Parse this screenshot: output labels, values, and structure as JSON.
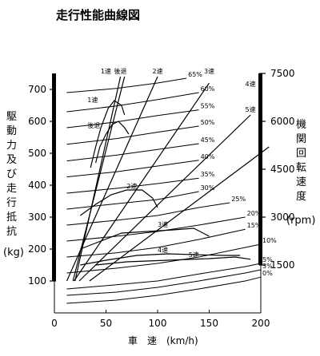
{
  "chart_data": {
    "type": "line",
    "title": "走行性能曲線図",
    "left_axis_label_chars": [
      "駆",
      "動",
      "力",
      "及",
      "び",
      "走",
      "行",
      "抵",
      "抗"
    ],
    "left_axis_unit": "(kg)",
    "right_axis_label_chars": [
      "機",
      "関",
      "回",
      "転",
      "速",
      "度"
    ],
    "right_axis_unit": "(rpm)",
    "xlabel": "車　速　(km/h)",
    "xlim": [
      0,
      200
    ],
    "ylim": [
      0,
      750
    ],
    "rpm_lim": [
      0,
      7500
    ],
    "x_ticks": [
      "0",
      "50",
      "100",
      "150",
      "200"
    ],
    "x_tick_values": [
      0,
      50,
      100,
      150,
      200
    ],
    "y_ticks": [
      "100",
      "200",
      "300",
      "400",
      "500",
      "600",
      "700"
    ],
    "y_tick_values": [
      100,
      200,
      300,
      400,
      500,
      600,
      700
    ],
    "rpm_ticks": [
      "1500",
      "3000",
      "4500",
      "6000",
      "7500"
    ],
    "rpm_tick_values": [
      1500,
      3000,
      4500,
      6000,
      7500
    ],
    "drive_force_curves": [
      {
        "name": "1速",
        "points": [
          [
            35,
            455
          ],
          [
            40,
            520
          ],
          [
            45,
            580
          ],
          [
            52,
            640
          ],
          [
            58,
            665
          ],
          [
            65,
            650
          ],
          [
            68,
            620
          ]
        ]
      },
      {
        "name": "後退",
        "points": [
          [
            40,
            470
          ],
          [
            44,
            520
          ],
          [
            50,
            560
          ],
          [
            56,
            590
          ],
          [
            62,
            600
          ],
          [
            68,
            580
          ],
          [
            72,
            560
          ]
        ]
      },
      {
        "name": "2速",
        "points": [
          [
            25,
            305
          ],
          [
            40,
            340
          ],
          [
            55,
            370
          ],
          [
            70,
            385
          ],
          [
            85,
            385
          ],
          [
            95,
            360
          ],
          [
            100,
            330
          ]
        ]
      },
      {
        "name": "3速",
        "points": [
          [
            25,
            200
          ],
          [
            45,
            225
          ],
          [
            65,
            250
          ],
          [
            90,
            255
          ],
          [
            115,
            260
          ],
          [
            135,
            265
          ],
          [
            150,
            240
          ]
        ]
      },
      {
        "name": "4速",
        "points": [
          [
            25,
            150
          ],
          [
            50,
            165
          ],
          [
            80,
            180
          ],
          [
            110,
            185
          ],
          [
            140,
            182
          ],
          [
            165,
            180
          ],
          [
            180,
            180
          ]
        ]
      },
      {
        "name": "5速",
        "points": [
          [
            40,
            150
          ],
          [
            70,
            160
          ],
          [
            110,
            165
          ],
          [
            150,
            170
          ],
          [
            175,
            175
          ],
          [
            190,
            168
          ]
        ]
      }
    ],
    "gear_lines": [
      {
        "name": "1速",
        "points": [
          [
            18,
            100
          ],
          [
            68,
            740
          ]
        ]
      },
      {
        "name": "後退",
        "points": [
          [
            20,
            100
          ],
          [
            64,
            740
          ]
        ]
      },
      {
        "name": "2速",
        "points": [
          [
            12,
            100
          ],
          [
            100,
            740
          ]
        ]
      },
      {
        "name": "3速",
        "points": [
          [
            19,
            100
          ],
          [
            150,
            720
          ]
        ]
      },
      {
        "name": "4速",
        "points": [
          [
            24,
            100
          ],
          [
            190,
            620
          ]
        ]
      },
      {
        "name": "5速",
        "points": [
          [
            34,
            100
          ],
          [
            208,
            520
          ]
        ]
      }
    ],
    "resistance_curves": [
      {
        "label": "65%",
        "points": [
          [
            12,
            690
          ],
          [
            60,
            703
          ],
          [
            100,
            720
          ],
          [
            128,
            735
          ]
        ]
      },
      {
        "label": "60%",
        "points": [
          [
            12,
            630
          ],
          [
            60,
            648
          ],
          [
            100,
            668
          ],
          [
            140,
            690
          ]
        ]
      },
      {
        "label": "55%",
        "points": [
          [
            12,
            580
          ],
          [
            60,
            598
          ],
          [
            100,
            618
          ],
          [
            140,
            636
          ]
        ]
      },
      {
        "label": "50%",
        "points": [
          [
            12,
            528
          ],
          [
            60,
            546
          ],
          [
            100,
            566
          ],
          [
            140,
            585
          ]
        ]
      },
      {
        "label": "45%",
        "points": [
          [
            12,
            476
          ],
          [
            60,
            494
          ],
          [
            100,
            512
          ],
          [
            140,
            530
          ]
        ]
      },
      {
        "label": "40%",
        "points": [
          [
            12,
            426
          ],
          [
            60,
            442
          ],
          [
            100,
            460
          ],
          [
            140,
            478
          ]
        ]
      },
      {
        "label": "35%",
        "points": [
          [
            12,
            375
          ],
          [
            60,
            390
          ],
          [
            100,
            405
          ],
          [
            140,
            422
          ]
        ]
      },
      {
        "label": "30%",
        "points": [
          [
            12,
            325
          ],
          [
            60,
            342
          ],
          [
            100,
            355
          ],
          [
            140,
            380
          ]
        ]
      },
      {
        "label": "25%",
        "points": [
          [
            12,
            275
          ],
          [
            60,
            290
          ],
          [
            100,
            305
          ],
          [
            140,
            330
          ],
          [
            170,
            345
          ]
        ]
      },
      {
        "label": "20%",
        "points": [
          [
            12,
            225
          ],
          [
            60,
            240
          ],
          [
            100,
            255
          ],
          [
            140,
            275
          ],
          [
            185,
            300
          ]
        ]
      },
      {
        "label": "15%",
        "points": [
          [
            12,
            175
          ],
          [
            60,
            188
          ],
          [
            100,
            205
          ],
          [
            140,
            230
          ],
          [
            185,
            262
          ]
        ]
      },
      {
        "label": "10%",
        "points": [
          [
            12,
            125
          ],
          [
            60,
            140
          ],
          [
            100,
            155
          ],
          [
            140,
            175
          ],
          [
            185,
            205
          ],
          [
            200,
            215
          ]
        ]
      },
      {
        "label": "5%",
        "points": [
          [
            12,
            75
          ],
          [
            60,
            88
          ],
          [
            100,
            100
          ],
          [
            140,
            122
          ],
          [
            185,
            145
          ],
          [
            200,
            155
          ]
        ]
      },
      {
        "label": "3%",
        "points": [
          [
            12,
            55
          ],
          [
            60,
            65
          ],
          [
            100,
            80
          ],
          [
            140,
            100
          ],
          [
            185,
            125
          ],
          [
            200,
            135
          ]
        ]
      },
      {
        "label": "0%",
        "points": [
          [
            12,
            30
          ],
          [
            60,
            40
          ],
          [
            100,
            55
          ],
          [
            140,
            75
          ],
          [
            185,
            100
          ],
          [
            200,
            112
          ]
        ]
      }
    ],
    "gear_labels": [
      {
        "text": "1速",
        "at": [
          50,
          740
        ]
      },
      {
        "text": "後退",
        "at": [
          64,
          740
        ]
      },
      {
        "text": "2速",
        "at": [
          100,
          740
        ]
      },
      {
        "text": "3速",
        "at": [
          150,
          740
        ]
      },
      {
        "text": "4速",
        "at": [
          190,
          700
        ]
      },
      {
        "text": "5速",
        "at": [
          190,
          620
        ]
      }
    ],
    "curve_notes": [
      {
        "text": "1速",
        "at": [
          32,
          655
        ]
      },
      {
        "text": "後退",
        "at": [
          32,
          575
        ]
      },
      {
        "text": "2速",
        "at": [
          70,
          385
        ]
      },
      {
        "text": "3速",
        "at": [
          100,
          265
        ]
      },
      {
        "text": "4速",
        "at": [
          100,
          185
        ]
      },
      {
        "text": "5速",
        "at": [
          130,
          170
        ]
      }
    ]
  }
}
